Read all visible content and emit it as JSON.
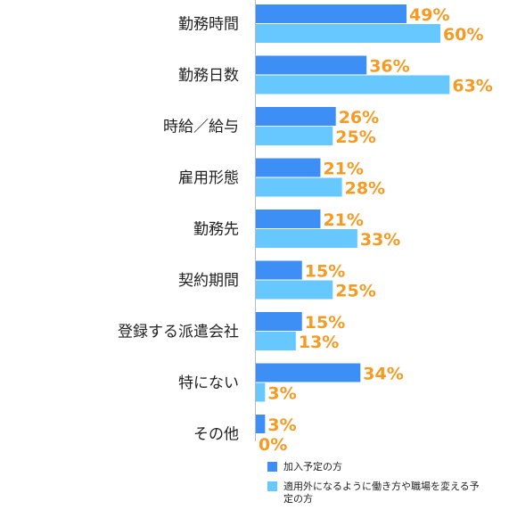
{
  "chart_data": {
    "type": "bar",
    "orientation": "horizontal",
    "categories": [
      "勤務時間",
      "勤務日数",
      "時給／給与",
      "雇用形態",
      "勤務先",
      "契約期間",
      "登録する派遣会社",
      "特にない",
      "その他"
    ],
    "series": [
      {
        "name": "加入予定の方",
        "color": "#3d8ff5",
        "values": [
          49,
          36,
          26,
          21,
          21,
          15,
          15,
          34,
          3
        ]
      },
      {
        "name": "適用外になるように働き方や職場を変える予定の方",
        "color": "#66c8ff",
        "values": [
          60,
          63,
          25,
          28,
          33,
          25,
          13,
          3,
          0
        ]
      }
    ],
    "value_suffix": "%",
    "label_color": "#f59a23",
    "xlim": [
      0,
      100
    ],
    "grid": false,
    "legend_position": "bottom"
  },
  "legend": {
    "items": [
      {
        "label": "加入予定の方",
        "color": "#3d8ff5"
      },
      {
        "label": "適用外になるように働き方や職場を変える予定の方",
        "color": "#66c8ff"
      }
    ]
  }
}
